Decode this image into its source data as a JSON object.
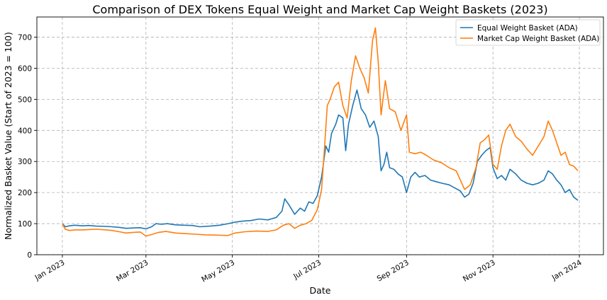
{
  "chart_data": {
    "type": "line",
    "title": "Comparison of DEX Tokens Equal Weight and Market Cap Weight Baskets (2023)",
    "xlabel": "Date",
    "ylabel": "Normalized Basket Value (Start of 2023 = 100)",
    "xlim": [
      "2022-12-14",
      "2024-01-18"
    ],
    "ylim": [
      0,
      765
    ],
    "x_ticks": [
      {
        "date": "2023-01-01",
        "label": "Jan 2023"
      },
      {
        "date": "2023-03-01",
        "label": "Mar 2023"
      },
      {
        "date": "2023-05-01",
        "label": "May 2023"
      },
      {
        "date": "2023-07-01",
        "label": "Jul 2023"
      },
      {
        "date": "2023-09-01",
        "label": "Sep 2023"
      },
      {
        "date": "2023-11-01",
        "label": "Nov 2023"
      },
      {
        "date": "2024-01-01",
        "label": "Jan 2024"
      }
    ],
    "y_ticks": [
      0,
      100,
      200,
      300,
      400,
      500,
      600,
      700
    ],
    "grid": true,
    "legend": "top-right",
    "series": [
      {
        "name": "Equal Weight Basket (ADA)",
        "color": "#1f77b4",
        "points": [
          [
            "2023-01-01",
            100
          ],
          [
            "2023-01-03",
            90
          ],
          [
            "2023-01-06",
            93
          ],
          [
            "2023-01-10",
            95
          ],
          [
            "2023-01-15",
            93
          ],
          [
            "2023-01-20",
            94
          ],
          [
            "2023-01-25",
            92
          ],
          [
            "2023-02-01",
            91
          ],
          [
            "2023-02-05",
            90
          ],
          [
            "2023-02-10",
            88
          ],
          [
            "2023-02-15",
            85
          ],
          [
            "2023-02-20",
            86
          ],
          [
            "2023-02-25",
            87
          ],
          [
            "2023-03-01",
            83
          ],
          [
            "2023-03-05",
            90
          ],
          [
            "2023-03-08",
            100
          ],
          [
            "2023-03-12",
            98
          ],
          [
            "2023-03-16",
            100
          ],
          [
            "2023-03-22",
            96
          ],
          [
            "2023-03-28",
            95
          ],
          [
            "2023-04-03",
            94
          ],
          [
            "2023-04-08",
            90
          ],
          [
            "2023-04-15",
            92
          ],
          [
            "2023-04-22",
            95
          ],
          [
            "2023-04-28",
            100
          ],
          [
            "2023-05-03",
            105
          ],
          [
            "2023-05-08",
            108
          ],
          [
            "2023-05-14",
            110
          ],
          [
            "2023-05-20",
            115
          ],
          [
            "2023-05-26",
            112
          ],
          [
            "2023-06-01",
            120
          ],
          [
            "2023-06-05",
            140
          ],
          [
            "2023-06-07",
            180
          ],
          [
            "2023-06-10",
            160
          ],
          [
            "2023-06-14",
            130
          ],
          [
            "2023-06-18",
            150
          ],
          [
            "2023-06-21",
            140
          ],
          [
            "2023-06-24",
            170
          ],
          [
            "2023-06-27",
            165
          ],
          [
            "2023-06-30",
            190
          ],
          [
            "2023-07-03",
            250
          ],
          [
            "2023-07-06",
            350
          ],
          [
            "2023-07-08",
            330
          ],
          [
            "2023-07-10",
            390
          ],
          [
            "2023-07-13",
            420
          ],
          [
            "2023-07-15",
            450
          ],
          [
            "2023-07-18",
            440
          ],
          [
            "2023-07-20",
            335
          ],
          [
            "2023-07-22",
            420
          ],
          [
            "2023-07-25",
            480
          ],
          [
            "2023-07-28",
            530
          ],
          [
            "2023-07-31",
            470
          ],
          [
            "2023-08-03",
            450
          ],
          [
            "2023-08-06",
            410
          ],
          [
            "2023-08-09",
            430
          ],
          [
            "2023-08-12",
            380
          ],
          [
            "2023-08-14",
            270
          ],
          [
            "2023-08-16",
            290
          ],
          [
            "2023-08-18",
            330
          ],
          [
            "2023-08-20",
            280
          ],
          [
            "2023-08-23",
            275
          ],
          [
            "2023-08-26",
            260
          ],
          [
            "2023-08-29",
            250
          ],
          [
            "2023-09-01",
            200
          ],
          [
            "2023-09-04",
            250
          ],
          [
            "2023-09-07",
            265
          ],
          [
            "2023-09-10",
            250
          ],
          [
            "2023-09-14",
            255
          ],
          [
            "2023-09-18",
            240
          ],
          [
            "2023-09-22",
            235
          ],
          [
            "2023-09-26",
            230
          ],
          [
            "2023-10-01",
            225
          ],
          [
            "2023-10-05",
            215
          ],
          [
            "2023-10-09",
            205
          ],
          [
            "2023-10-12",
            185
          ],
          [
            "2023-10-15",
            195
          ],
          [
            "2023-10-18",
            230
          ],
          [
            "2023-10-21",
            300
          ],
          [
            "2023-10-24",
            320
          ],
          [
            "2023-10-27",
            335
          ],
          [
            "2023-10-30",
            345
          ],
          [
            "2023-11-01",
            280
          ],
          [
            "2023-11-04",
            245
          ],
          [
            "2023-11-07",
            255
          ],
          [
            "2023-11-10",
            240
          ],
          [
            "2023-11-13",
            275
          ],
          [
            "2023-11-17",
            260
          ],
          [
            "2023-11-21",
            240
          ],
          [
            "2023-11-25",
            230
          ],
          [
            "2023-11-29",
            225
          ],
          [
            "2023-12-03",
            230
          ],
          [
            "2023-12-07",
            240
          ],
          [
            "2023-12-10",
            270
          ],
          [
            "2023-12-13",
            260
          ],
          [
            "2023-12-16",
            240
          ],
          [
            "2023-12-19",
            225
          ],
          [
            "2023-12-22",
            200
          ],
          [
            "2023-12-25",
            210
          ],
          [
            "2023-12-28",
            185
          ],
          [
            "2023-12-31",
            175
          ]
        ]
      },
      {
        "name": "Market Cap Weight Basket (ADA)",
        "color": "#ff7f0e",
        "points": [
          [
            "2023-01-01",
            100
          ],
          [
            "2023-01-03",
            82
          ],
          [
            "2023-01-06",
            78
          ],
          [
            "2023-01-10",
            80
          ],
          [
            "2023-01-15",
            80
          ],
          [
            "2023-01-20",
            81
          ],
          [
            "2023-01-25",
            82
          ],
          [
            "2023-02-01",
            80
          ],
          [
            "2023-02-05",
            78
          ],
          [
            "2023-02-10",
            74
          ],
          [
            "2023-02-15",
            70
          ],
          [
            "2023-02-20",
            72
          ],
          [
            "2023-02-25",
            73
          ],
          [
            "2023-03-01",
            60
          ],
          [
            "2023-03-05",
            65
          ],
          [
            "2023-03-10",
            72
          ],
          [
            "2023-03-15",
            75
          ],
          [
            "2023-03-22",
            70
          ],
          [
            "2023-03-28",
            68
          ],
          [
            "2023-04-05",
            66
          ],
          [
            "2023-04-12",
            64
          ],
          [
            "2023-04-20",
            63
          ],
          [
            "2023-04-28",
            62
          ],
          [
            "2023-05-03",
            70
          ],
          [
            "2023-05-10",
            74
          ],
          [
            "2023-05-18",
            76
          ],
          [
            "2023-05-26",
            75
          ],
          [
            "2023-06-01",
            80
          ],
          [
            "2023-06-06",
            95
          ],
          [
            "2023-06-10",
            100
          ],
          [
            "2023-06-14",
            85
          ],
          [
            "2023-06-18",
            95
          ],
          [
            "2023-06-22",
            100
          ],
          [
            "2023-06-26",
            110
          ],
          [
            "2023-06-30",
            145
          ],
          [
            "2023-07-03",
            210
          ],
          [
            "2023-07-05",
            340
          ],
          [
            "2023-07-07",
            480
          ],
          [
            "2023-07-09",
            500
          ],
          [
            "2023-07-12",
            540
          ],
          [
            "2023-07-15",
            555
          ],
          [
            "2023-07-18",
            480
          ],
          [
            "2023-07-21",
            440
          ],
          [
            "2023-07-24",
            560
          ],
          [
            "2023-07-27",
            640
          ],
          [
            "2023-07-30",
            600
          ],
          [
            "2023-08-02",
            570
          ],
          [
            "2023-08-05",
            520
          ],
          [
            "2023-08-08",
            690
          ],
          [
            "2023-08-10",
            730
          ],
          [
            "2023-08-12",
            620
          ],
          [
            "2023-08-14",
            450
          ],
          [
            "2023-08-17",
            560
          ],
          [
            "2023-08-20",
            470
          ],
          [
            "2023-08-24",
            460
          ],
          [
            "2023-08-28",
            400
          ],
          [
            "2023-09-01",
            450
          ],
          [
            "2023-09-03",
            330
          ],
          [
            "2023-09-07",
            325
          ],
          [
            "2023-09-11",
            330
          ],
          [
            "2023-09-15",
            320
          ],
          [
            "2023-09-20",
            305
          ],
          [
            "2023-09-26",
            295
          ],
          [
            "2023-10-01",
            280
          ],
          [
            "2023-10-06",
            270
          ],
          [
            "2023-10-12",
            210
          ],
          [
            "2023-10-16",
            225
          ],
          [
            "2023-10-20",
            280
          ],
          [
            "2023-10-23",
            360
          ],
          [
            "2023-10-26",
            370
          ],
          [
            "2023-10-29",
            385
          ],
          [
            "2023-11-01",
            290
          ],
          [
            "2023-11-04",
            275
          ],
          [
            "2023-11-07",
            350
          ],
          [
            "2023-11-10",
            400
          ],
          [
            "2023-11-13",
            420
          ],
          [
            "2023-11-17",
            380
          ],
          [
            "2023-11-21",
            365
          ],
          [
            "2023-11-25",
            340
          ],
          [
            "2023-11-29",
            320
          ],
          [
            "2023-12-03",
            350
          ],
          [
            "2023-12-07",
            380
          ],
          [
            "2023-12-10",
            430
          ],
          [
            "2023-12-13",
            400
          ],
          [
            "2023-12-16",
            360
          ],
          [
            "2023-12-19",
            320
          ],
          [
            "2023-12-22",
            330
          ],
          [
            "2023-12-25",
            290
          ],
          [
            "2023-12-28",
            285
          ],
          [
            "2023-12-31",
            270
          ]
        ]
      }
    ]
  }
}
